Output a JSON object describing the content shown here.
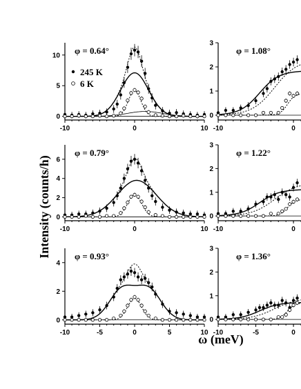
{
  "figure": {
    "ylabel": "Intensity (counts/h)",
    "xlabel": "ω (meV)"
  },
  "legend": {
    "hot": "245 K",
    "cold": "6 K"
  },
  "chart_data": [
    {
      "type": "scatter",
      "panel": "left-1",
      "label": "φ = 0.64°",
      "xlim": [
        -10,
        10
      ],
      "ylim": [
        -0.6,
        12
      ],
      "yticks": [
        0,
        5,
        10
      ],
      "xticks": [
        -10,
        0,
        10
      ],
      "series": [
        {
          "name": "245 K",
          "x": [
            -10,
            -9,
            -8,
            -7,
            -6,
            -5,
            -4,
            -3,
            -2.5,
            -2,
            -1.5,
            -1,
            -0.5,
            0,
            0.5,
            1,
            1.5,
            2,
            2.5,
            3,
            4,
            5,
            6,
            7,
            8,
            9,
            10
          ],
          "y": [
            0.3,
            0.2,
            0.3,
            0.2,
            0.4,
            0.5,
            0.7,
            1.2,
            2.0,
            3.5,
            5.5,
            8.0,
            10.2,
            10.8,
            10.5,
            9.0,
            7.0,
            4.5,
            3.0,
            1.8,
            0.9,
            0.5,
            0.6,
            0.4,
            0.3,
            0.2,
            0.3
          ]
        },
        {
          "name": "6 K",
          "x": [
            -10,
            -9,
            -8,
            -7,
            -6,
            -5,
            -4,
            -3,
            -2,
            -1.5,
            -1,
            -0.5,
            0,
            0.5,
            1,
            1.5,
            2,
            3,
            4,
            5,
            6,
            7,
            8,
            9,
            10
          ],
          "y": [
            0.0,
            0.0,
            0.1,
            0.0,
            0.0,
            0.1,
            0.0,
            0.1,
            0.5,
            1.3,
            2.6,
            3.8,
            4.3,
            3.9,
            2.9,
            1.6,
            0.7,
            0.2,
            0.1,
            0.0,
            0.0,
            0.1,
            0.0,
            0.0,
            0.0
          ]
        }
      ],
      "fits": {
        "broad": {
          "amp": 7.1,
          "center": 0,
          "sigma": 2.0
        },
        "narrow": {
          "amp": 4.2,
          "center": 0,
          "sigma": 0.9
        },
        "inelastic": {
          "amp": 0.8,
          "center": 1.5,
          "sigma": 2.5
        }
      }
    },
    {
      "type": "scatter",
      "panel": "left-2",
      "label": "φ = 0.79°",
      "xlim": [
        -10,
        10
      ],
      "ylim": [
        -0.4,
        7.5
      ],
      "yticks": [
        0,
        2,
        4,
        6
      ],
      "xticks": [
        -10,
        0,
        10
      ],
      "series": [
        {
          "name": "245 K",
          "x": [
            -10,
            -9,
            -8,
            -7,
            -6,
            -5,
            -4,
            -3,
            -2.5,
            -2,
            -1.5,
            -1,
            -0.5,
            0,
            0.5,
            1,
            1.5,
            2,
            2.5,
            3,
            4,
            5,
            6,
            7,
            8,
            9,
            10
          ],
          "y": [
            0.2,
            0.2,
            0.3,
            0.3,
            0.4,
            0.6,
            0.9,
            1.5,
            2.2,
            3.0,
            4.0,
            5.0,
            5.8,
            6.0,
            5.6,
            4.8,
            3.8,
            3.0,
            2.2,
            1.6,
            1.0,
            0.7,
            0.5,
            0.4,
            0.3,
            0.3,
            0.2
          ]
        },
        {
          "name": "6 K",
          "x": [
            -10,
            -9,
            -8,
            -7,
            -6,
            -5,
            -4,
            -3,
            -2,
            -1.5,
            -1,
            -0.5,
            0,
            0.5,
            1,
            1.5,
            2,
            3,
            4,
            5,
            6,
            7,
            8,
            9,
            10
          ],
          "y": [
            0.0,
            0.0,
            0.0,
            0.1,
            0.0,
            0.0,
            0.1,
            0.1,
            0.4,
            0.9,
            1.5,
            2.1,
            2.3,
            2.1,
            1.6,
            1.0,
            0.5,
            0.2,
            0.1,
            0.0,
            0.0,
            0.0,
            0.0,
            0.0,
            0.0
          ]
        }
      ],
      "fits": {
        "broad": {
          "amp": 3.8,
          "center": 0.3,
          "sigma": 2.8
        },
        "narrow": {
          "amp": 2.3,
          "center": 0,
          "sigma": 1.0
        },
        "inelastic": {
          "amp": 0.0,
          "center": 0,
          "sigma": 1
        }
      }
    },
    {
      "type": "scatter",
      "panel": "left-3",
      "label": "φ = 0.93°",
      "xlim": [
        -10,
        10
      ],
      "ylim": [
        -0.3,
        5
      ],
      "yticks": [
        0,
        2,
        4
      ],
      "xticks": [
        -10,
        -5,
        0,
        5,
        10
      ],
      "series": [
        {
          "name": "245 K",
          "x": [
            -10,
            -9,
            -8,
            -7,
            -6,
            -5,
            -4,
            -3,
            -2.5,
            -2,
            -1.5,
            -1,
            -0.5,
            0,
            0.5,
            1,
            1.5,
            2,
            2.5,
            3,
            4,
            5,
            6,
            7,
            8,
            9,
            10
          ],
          "y": [
            0.2,
            0.2,
            0.3,
            0.4,
            0.5,
            0.7,
            1.0,
            1.6,
            2.2,
            2.8,
            3.0,
            3.2,
            3.4,
            3.3,
            3.0,
            2.8,
            2.9,
            2.6,
            2.3,
            1.8,
            1.1,
            0.6,
            0.5,
            0.4,
            0.3,
            0.2,
            0.2
          ]
        },
        {
          "name": "6 K",
          "x": [
            -10,
            -9,
            -8,
            -7,
            -6,
            -5,
            -4,
            -3,
            -2,
            -1.5,
            -1,
            -0.5,
            0,
            0.5,
            1,
            1.5,
            2,
            3,
            4,
            5,
            6,
            7,
            8,
            9,
            10
          ],
          "y": [
            0.0,
            0.0,
            0.0,
            0.0,
            0.0,
            0.0,
            0.0,
            0.1,
            0.3,
            0.6,
            1.0,
            1.4,
            1.6,
            1.4,
            1.0,
            0.6,
            0.3,
            0.1,
            0.0,
            0.0,
            0.0,
            0.0,
            0.0,
            0.0,
            0.0
          ]
        }
      ],
      "fits": {
        "broad": {
          "amp": 2.1,
          "center": -1.8,
          "sigma": 1.8
        },
        "broad2": {
          "amp": 2.1,
          "center": 2.0,
          "sigma": 1.8
        },
        "narrow": {
          "amp": 1.5,
          "center": 0,
          "sigma": 1.0
        }
      }
    },
    {
      "type": "scatter",
      "panel": "right-1",
      "label": "φ = 1.08°",
      "xlim": [
        -10,
        1
      ],
      "ylim": [
        -0.2,
        3
      ],
      "yticks": [
        0,
        1,
        2,
        3
      ],
      "xticks": [
        -10,
        0
      ],
      "series": [
        {
          "name": "245 K",
          "x": [
            -10,
            -9,
            -8,
            -7,
            -6,
            -5,
            -4,
            -3.5,
            -3,
            -2.5,
            -2,
            -1.5,
            -1,
            -0.5,
            0,
            0.5
          ],
          "y": [
            0.1,
            0.2,
            0.2,
            0.3,
            0.4,
            0.6,
            0.9,
            1.1,
            1.4,
            1.5,
            1.6,
            1.8,
            1.9,
            2.1,
            2.2,
            2.3
          ]
        },
        {
          "name": "6 K",
          "x": [
            -10,
            -9,
            -8,
            -7,
            -6,
            -5,
            -4,
            -3,
            -2,
            -1.5,
            -1,
            -0.5,
            0,
            0.5
          ],
          "y": [
            0.0,
            0.0,
            0.0,
            0.0,
            0.0,
            0.0,
            0.1,
            0.1,
            0.1,
            0.3,
            0.6,
            0.9,
            0.8,
            0.9
          ]
        }
      ]
    },
    {
      "type": "scatter",
      "panel": "right-2",
      "label": "φ = 1.22°",
      "xlim": [
        -10,
        1
      ],
      "ylim": [
        -0.2,
        3
      ],
      "yticks": [
        0,
        1,
        2,
        3
      ],
      "xticks": [
        -10,
        0
      ],
      "series": [
        {
          "name": "245 K",
          "x": [
            -10,
            -9,
            -8,
            -7,
            -6,
            -5,
            -4,
            -3.5,
            -3,
            -2.5,
            -2,
            -1.5,
            -1,
            -0.5,
            0,
            0.5
          ],
          "y": [
            0.1,
            0.1,
            0.2,
            0.2,
            0.3,
            0.5,
            0.6,
            0.8,
            0.8,
            0.9,
            0.7,
            1.0,
            0.9,
            0.8,
            1.2,
            1.4
          ]
        },
        {
          "name": "6 K",
          "x": [
            -10,
            -9,
            -8,
            -7,
            -6,
            -5,
            -4,
            -3,
            -2,
            -1.5,
            -1,
            -0.5,
            0,
            0.5
          ],
          "y": [
            0.0,
            0.0,
            0.0,
            0.0,
            0.0,
            0.0,
            0.0,
            0.1,
            0.1,
            0.2,
            0.3,
            0.5,
            0.6,
            0.7
          ]
        }
      ]
    },
    {
      "type": "scatter",
      "panel": "right-3",
      "label": "φ = 1.36°",
      "xlim": [
        -10,
        1
      ],
      "ylim": [
        -0.2,
        3
      ],
      "yticks": [
        0,
        1,
        2,
        3
      ],
      "xticks": [
        -10,
        -5,
        0
      ],
      "series": [
        {
          "name": "245 K",
          "x": [
            -10,
            -9,
            -8,
            -7,
            -6,
            -5,
            -4.5,
            -4,
            -3.5,
            -3,
            -2.5,
            -2,
            -1.5,
            -1,
            -0.5,
            0,
            0.5
          ],
          "y": [
            0.1,
            0.1,
            0.2,
            0.2,
            0.3,
            0.4,
            0.5,
            0.5,
            0.6,
            0.7,
            0.6,
            0.6,
            0.8,
            0.7,
            0.5,
            0.8,
            0.9
          ]
        },
        {
          "name": "6 K",
          "x": [
            -10,
            -9,
            -8,
            -7,
            -6,
            -5,
            -4,
            -3,
            -2,
            -1.5,
            -1,
            -0.5,
            0,
            0.5
          ],
          "y": [
            0.0,
            0.0,
            0.0,
            0.0,
            0.0,
            0.0,
            0.0,
            0.0,
            0.1,
            0.1,
            0.2,
            0.4,
            0.6,
            0.7
          ]
        }
      ]
    }
  ]
}
